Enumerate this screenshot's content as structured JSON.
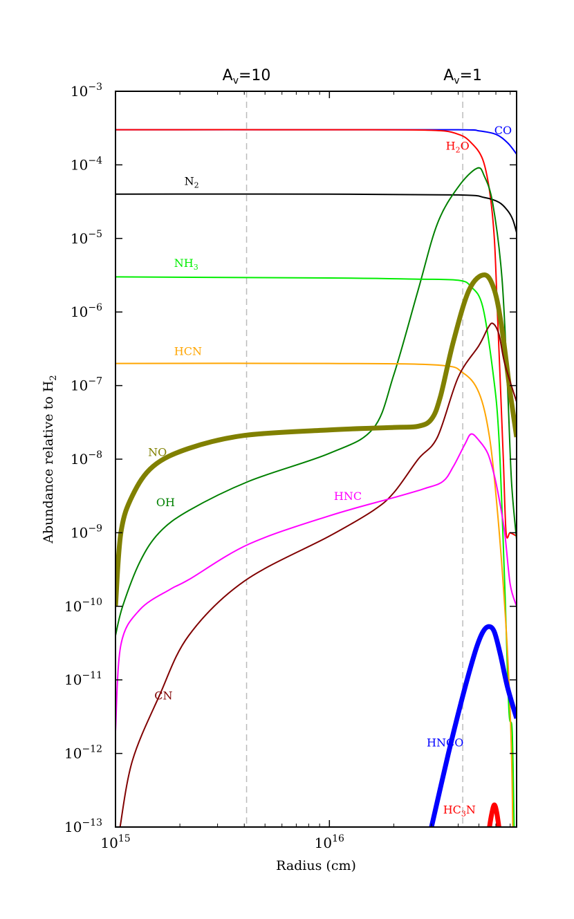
{
  "chart_data": {
    "type": "line",
    "xscale": "log",
    "yscale": "log",
    "xlabel": "Radius (cm)",
    "ylabel_main": "Abundance relative to H",
    "ylabel_sub": "2",
    "xlim": [
      1000000000000000.0,
      7.5e+16
    ],
    "ylim": [
      1e-13,
      0.001
    ],
    "x_ticks": [
      {
        "base": "10",
        "exp": "15",
        "value": 1000000000000000.0
      },
      {
        "base": "10",
        "exp": "16",
        "value": 1e+16
      }
    ],
    "y_ticks": [
      {
        "base": "10",
        "exp": "−3",
        "value": 0.001
      },
      {
        "base": "10",
        "exp": "−4",
        "value": 0.0001
      },
      {
        "base": "10",
        "exp": "−5",
        "value": 1e-05
      },
      {
        "base": "10",
        "exp": "−6",
        "value": 1e-06
      },
      {
        "base": "10",
        "exp": "−7",
        "value": 1e-07
      },
      {
        "base": "10",
        "exp": "−8",
        "value": 1e-08
      },
      {
        "base": "10",
        "exp": "−9",
        "value": 1e-09
      },
      {
        "base": "10",
        "exp": "−10",
        "value": 1e-10
      },
      {
        "base": "10",
        "exp": "−11",
        "value": 1e-11
      },
      {
        "base": "10",
        "exp": "−12",
        "value": 1e-12
      },
      {
        "base": "10",
        "exp": "−13",
        "value": 1e-13
      }
    ],
    "av_markers": [
      {
        "base": "A",
        "sub": "v",
        "rest": "=10",
        "x": 4100000000000000.0
      },
      {
        "base": "A",
        "sub": "v",
        "rest": "=1",
        "x": 4.2e+16
      }
    ],
    "series": [
      {
        "name": "CO",
        "label": [
          "CO"
        ],
        "color": "#0000ff",
        "width": 2,
        "label_at": [
          5.9e+16,
          0.00026
        ],
        "points": [
          [
            1000000000000000.0,
            0.0003
          ],
          [
            1e+16,
            0.0003
          ],
          [
            4e+16,
            0.0003
          ],
          [
            5e+16,
            0.00029
          ],
          [
            6e+16,
            0.00026
          ],
          [
            6.8e+16,
            0.0002
          ],
          [
            7.5e+16,
            0.00014
          ]
        ]
      },
      {
        "name": "H2O",
        "label": [
          "H",
          "2",
          "O"
        ],
        "color": "#ff0000",
        "width": 2,
        "label_at": [
          3.5e+16,
          0.00016
        ],
        "points": [
          [
            1000000000000000.0,
            0.0003
          ],
          [
            1e+16,
            0.0003
          ],
          [
            3e+16,
            0.000295
          ],
          [
            4e+16,
            0.00026
          ],
          [
            4.6e+16,
            0.0002
          ],
          [
            5.2e+16,
            0.00012
          ],
          [
            5.6e+16,
            4.5e-05
          ],
          [
            5.9e+16,
            1e-05
          ],
          [
            6.1e+16,
            1e-06
          ],
          [
            6.3e+16,
            1e-07
          ],
          [
            6.5e+16,
            1e-08
          ],
          [
            6.7e+16,
            1e-09
          ],
          [
            7e+16,
            1e-09
          ],
          [
            7.5e+16,
            9e-10
          ]
        ]
      },
      {
        "name": "N2",
        "label": [
          "N",
          "2"
        ],
        "color": "#000000",
        "width": 2,
        "label_at": [
          2100000000000000.0,
          5.3e-05
        ],
        "points": [
          [
            1000000000000000.0,
            4e-05
          ],
          [
            1e+16,
            4e-05
          ],
          [
            4e+16,
            3.9e-05
          ],
          [
            5.3e+16,
            3.6e-05
          ],
          [
            6.2e+16,
            3.1e-05
          ],
          [
            6.8e+16,
            2.4e-05
          ],
          [
            7.2e+16,
            1.8e-05
          ],
          [
            7.5e+16,
            1.2e-05
          ]
        ]
      },
      {
        "name": "OH",
        "label": [
          "OH"
        ],
        "color": "#008000",
        "width": 2,
        "label_at": [
          1550000000000000.0,
          2.3e-09
        ],
        "points": [
          [
            1000000000000000.0,
            4e-11
          ],
          [
            1080000000000000.0,
            1e-10
          ],
          [
            1300000000000000.0,
            4e-10
          ],
          [
            1600000000000000.0,
            1e-09
          ],
          [
            2200000000000000.0,
            2e-09
          ],
          [
            4200000000000000.0,
            5e-09
          ],
          [
            1e+16,
            1.2e-08
          ],
          [
            1.6e+16,
            2.6e-08
          ],
          [
            2e+16,
            1.4e-07
          ],
          [
            2.6e+16,
            2e-06
          ],
          [
            3.2e+16,
            1.6e-05
          ],
          [
            4e+16,
            5e-05
          ],
          [
            4.9e+16,
            9e-05
          ],
          [
            5.3e+16,
            7e-05
          ],
          [
            5.8e+16,
            3e-05
          ],
          [
            6.4e+16,
            3e-06
          ],
          [
            6.8e+16,
            1e-07
          ],
          [
            7.1e+16,
            5e-09
          ],
          [
            7.5e+16,
            8e-10
          ]
        ]
      },
      {
        "name": "NH3",
        "label": [
          "NH",
          "3"
        ],
        "color": "#00ee00",
        "width": 2,
        "label_at": [
          1880000000000000.0,
          4.1e-06
        ],
        "points": [
          [
            1000000000000000.0,
            3e-06
          ],
          [
            1e+16,
            2.9e-06
          ],
          [
            2.5e+16,
            2.8e-06
          ],
          [
            4e+16,
            2.7e-06
          ],
          [
            4.6e+16,
            2.2e-06
          ],
          [
            5.2e+16,
            1.2e-06
          ],
          [
            5.8e+16,
            1.6e-07
          ],
          [
            6.2e+16,
            2e-08
          ],
          [
            6.6e+16,
            2e-10
          ],
          [
            6.9e+16,
            4e-12
          ],
          [
            7.15e+16,
            2e-12
          ],
          [
            7.3e+16,
            1e-13
          ]
        ]
      },
      {
        "name": "HCN",
        "label": [
          "HCN"
        ],
        "color": "#ffa500",
        "width": 2,
        "label_at": [
          1880000000000000.0,
          2.6e-07
        ],
        "points": [
          [
            1000000000000000.0,
            2e-07
          ],
          [
            1e+16,
            2e-07
          ],
          [
            3.2e+16,
            1.9e-07
          ],
          [
            4.2e+16,
            1.5e-07
          ],
          [
            5e+16,
            8e-08
          ],
          [
            5.6e+16,
            2e-08
          ],
          [
            6.1e+16,
            2e-09
          ],
          [
            6.6e+16,
            1e-10
          ],
          [
            6.9e+16,
            1e-11
          ],
          [
            7.1e+16,
            1e-12
          ],
          [
            7.2e+16,
            1e-13
          ]
        ]
      },
      {
        "name": "NO",
        "label": [
          "NO"
        ],
        "color": "#808000",
        "width": 7,
        "label_at": [
          1420000000000000.0,
          1.1e-08
        ],
        "points": [
          [
            1000000000000000.0,
            1e-10
          ],
          [
            1060000000000000.0,
            1e-09
          ],
          [
            1200000000000000.0,
            3.2e-09
          ],
          [
            1500000000000000.0,
            8e-09
          ],
          [
            2200000000000000.0,
            1.4e-08
          ],
          [
            4000000000000000.0,
            2.1e-08
          ],
          [
            1e+16,
            2.5e-08
          ],
          [
            2e+16,
            2.7e-08
          ],
          [
            2.6e+16,
            2.8e-08
          ],
          [
            3e+16,
            3.5e-08
          ],
          [
            3.3e+16,
            7e-08
          ],
          [
            3.8e+16,
            4e-07
          ],
          [
            4.5e+16,
            2e-06
          ],
          [
            5.3e+16,
            3.2e-06
          ],
          [
            5.9e+16,
            2e-06
          ],
          [
            6.4e+16,
            6e-07
          ],
          [
            7e+16,
            8e-08
          ],
          [
            7.5e+16,
            2e-08
          ]
        ]
      },
      {
        "name": "CN",
        "label": [
          "CN"
        ],
        "color": "#800000",
        "width": 2,
        "label_at": [
          1520000000000000.0,
          5.4e-12
        ],
        "points": [
          [
            1050000000000000.0,
            1e-13
          ],
          [
            1200000000000000.0,
            8e-13
          ],
          [
            1600000000000000.0,
            6e-12
          ],
          [
            2200000000000000.0,
            4e-11
          ],
          [
            4000000000000000.0,
            2.2e-10
          ],
          [
            1e+16,
            9e-10
          ],
          [
            1.6e+16,
            2e-09
          ],
          [
            2e+16,
            3.5e-09
          ],
          [
            2.6e+16,
            1e-08
          ],
          [
            3.2e+16,
            2e-08
          ],
          [
            4e+16,
            1.3e-07
          ],
          [
            5e+16,
            3.5e-07
          ],
          [
            5.5e+16,
            6e-07
          ],
          [
            5.8e+16,
            7e-07
          ],
          [
            6.2e+16,
            5e-07
          ],
          [
            6.6e+16,
            2e-07
          ],
          [
            7.5e+16,
            6e-08
          ]
        ]
      },
      {
        "name": "HNC",
        "label": [
          "HNC"
        ],
        "color": "#ff00ff",
        "width": 2,
        "label_at": [
          1.05e+16,
          2.8e-09
        ],
        "points": [
          [
            1000000000000000.0,
            2e-12
          ],
          [
            1060000000000000.0,
            3e-11
          ],
          [
            1300000000000000.0,
            9e-11
          ],
          [
            1800000000000000.0,
            1.7e-10
          ],
          [
            2200000000000000.0,
            2.3e-10
          ],
          [
            4200000000000000.0,
            7e-10
          ],
          [
            1e+16,
            1.7e-09
          ],
          [
            2e+16,
            3e-09
          ],
          [
            2.8e+16,
            4e-09
          ],
          [
            3.4e+16,
            5e-09
          ],
          [
            3.8e+16,
            8e-09
          ],
          [
            4.3e+16,
            1.6e-08
          ],
          [
            4.6e+16,
            2.2e-08
          ],
          [
            5e+16,
            1.8e-08
          ],
          [
            5.5e+16,
            1.2e-08
          ],
          [
            5.9e+16,
            6e-09
          ],
          [
            6.2e+16,
            3e-09
          ],
          [
            6.6e+16,
            1e-09
          ],
          [
            7e+16,
            2e-10
          ],
          [
            7.5e+16,
            1e-10
          ]
        ]
      },
      {
        "name": "HNCO",
        "label": [
          "HNCO"
        ],
        "color": "#0000ff",
        "width": 7,
        "label_at": [
          2.85e+16,
          1.25e-12
        ],
        "points": [
          [
            3e+16,
            1e-13
          ],
          [
            3.6e+16,
            1e-12
          ],
          [
            4.2e+16,
            6e-12
          ],
          [
            4.8e+16,
            2.4e-11
          ],
          [
            5.2e+16,
            4.4e-11
          ],
          [
            5.55e+16,
            5.3e-11
          ],
          [
            5.9e+16,
            4.5e-11
          ],
          [
            6.3e+16,
            2.2e-11
          ],
          [
            6.8e+16,
            8e-12
          ],
          [
            7.5e+16,
            3e-12
          ]
        ]
      },
      {
        "name": "HC3N",
        "label": [
          "HC",
          "3",
          "N"
        ],
        "color": "#ff0000",
        "width": 7,
        "label_at": [
          3.4e+16,
          1.52e-13
        ],
        "points": [
          [
            5.6e+16,
            1e-13
          ],
          [
            5.75e+16,
            1.55e-13
          ],
          [
            5.9e+16,
            2e-13
          ],
          [
            6.05e+16,
            1.6e-13
          ],
          [
            6.2e+16,
            1e-13
          ]
        ]
      }
    ]
  }
}
